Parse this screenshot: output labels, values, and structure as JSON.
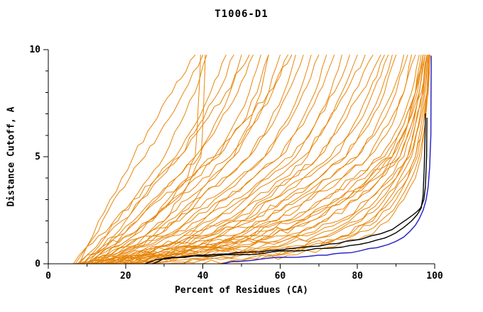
{
  "chart_data": {
    "type": "line",
    "title": "T1006-D1",
    "xlabel": "Percent of Residues (CA)",
    "ylabel": "Distance Cutoff, A",
    "xlim": [
      0,
      100
    ],
    "ylim": [
      0,
      10
    ],
    "grid": "off",
    "legend": "none",
    "colors": {
      "other_models": "#E8860B",
      "highlight_black": "#000000",
      "highlight_blue": "#2B28C8",
      "axis": "#000000",
      "background": "#FFFFFF"
    },
    "axes": {
      "x": {
        "min": 0,
        "max": 100,
        "minor_step": 10,
        "major_ticks": [
          0,
          20,
          40,
          60,
          80,
          100
        ],
        "tick_labels": [
          "0",
          "20",
          "40",
          "60",
          "80",
          "100"
        ]
      },
      "y": {
        "min": 0,
        "max": 10,
        "minor_step": 1,
        "major_ticks": [
          0,
          5,
          10
        ],
        "tick_labels": [
          "0",
          "5",
          "10"
        ]
      }
    },
    "series": [
      {
        "name": "other-models",
        "color": "#E8860B",
        "width": 1,
        "jitter": 0.16,
        "y_levels": [
          0,
          0.4,
          0.8,
          1.3,
          2,
          3,
          4,
          5,
          6.5,
          8,
          9.75
        ],
        "curves_x_at_y": [
          [
            8,
            9,
            10,
            11.5,
            13,
            16,
            19,
            22,
            27,
            32,
            38
          ],
          [
            7,
            8.5,
            10,
            12,
            14,
            17,
            21,
            25,
            30,
            35,
            40
          ],
          [
            9,
            11,
            13,
            15,
            18,
            22,
            26,
            30,
            34,
            38,
            41
          ],
          [
            10,
            12,
            14,
            17,
            20,
            24,
            28,
            33,
            38,
            42,
            46
          ],
          [
            8,
            10,
            12.5,
            15,
            19,
            24,
            29,
            34,
            39,
            44,
            48
          ],
          [
            11,
            13,
            16,
            19,
            23,
            28,
            33,
            38,
            43,
            47,
            50
          ],
          [
            9,
            12,
            15,
            18,
            22,
            27,
            33,
            39,
            44,
            49,
            53
          ],
          [
            12,
            15,
            18,
            22,
            26,
            31,
            37,
            43,
            48,
            52,
            55
          ],
          [
            10,
            13,
            17,
            21,
            26,
            32,
            38,
            44,
            50,
            54,
            57
          ],
          [
            13,
            16,
            20,
            25,
            30,
            36,
            42,
            48,
            53,
            57,
            60
          ],
          [
            8,
            11,
            15,
            20,
            26,
            33,
            40,
            47,
            53,
            58,
            62
          ],
          [
            14,
            18,
            22,
            27,
            33,
            39,
            46,
            52,
            57,
            61,
            64
          ],
          [
            10,
            14,
            19,
            25,
            31,
            38,
            45,
            52,
            58,
            62,
            66
          ],
          [
            15,
            19,
            24,
            30,
            36,
            43,
            50,
            56,
            61,
            65,
            68
          ],
          [
            11,
            15,
            21,
            27,
            34,
            41,
            49,
            56,
            62,
            66,
            70
          ],
          [
            16,
            21,
            26,
            32,
            39,
            46,
            53,
            60,
            65,
            69,
            72
          ],
          [
            12,
            17,
            23,
            30,
            37,
            45,
            53,
            60,
            66,
            70,
            74
          ],
          [
            17,
            22,
            28,
            35,
            42,
            50,
            57,
            64,
            69,
            73,
            76
          ],
          [
            13,
            18,
            25,
            32,
            40,
            48,
            56,
            63,
            69,
            74,
            78
          ],
          [
            18,
            24,
            30,
            37,
            45,
            53,
            61,
            67,
            72,
            76,
            80
          ],
          [
            14,
            20,
            27,
            35,
            43,
            51,
            59,
            66,
            72,
            77,
            82
          ],
          [
            19,
            25,
            32,
            40,
            48,
            56,
            63,
            70,
            75,
            79,
            84
          ],
          [
            15,
            21,
            29,
            37,
            46,
            55,
            63,
            70,
            76,
            81,
            86
          ],
          [
            20,
            27,
            34,
            42,
            50,
            58,
            66,
            73,
            79,
            83,
            87
          ],
          [
            16,
            23,
            31,
            40,
            49,
            58,
            66,
            74,
            80,
            84,
            88
          ],
          [
            21,
            28,
            36,
            44,
            53,
            62,
            70,
            77,
            82,
            86,
            89
          ],
          [
            17,
            24,
            33,
            42,
            52,
            61,
            70,
            77,
            83,
            87,
            90
          ],
          [
            22,
            30,
            38,
            47,
            56,
            65,
            73,
            80,
            85,
            89,
            92
          ],
          [
            18,
            26,
            35,
            45,
            55,
            64,
            73,
            80,
            86,
            90,
            93
          ],
          [
            23,
            31,
            40,
            50,
            59,
            68,
            76,
            83,
            88,
            92,
            94
          ],
          [
            19,
            28,
            38,
            48,
            58,
            67,
            76,
            83,
            89,
            92,
            95
          ],
          [
            24,
            33,
            42,
            52,
            62,
            71,
            79,
            86,
            91,
            94,
            96
          ],
          [
            20,
            30,
            40,
            51,
            61,
            71,
            80,
            87,
            92,
            95,
            97
          ],
          [
            25,
            35,
            45,
            55,
            65,
            75,
            83,
            89,
            93,
            96,
            97.5
          ],
          [
            26,
            36,
            47,
            58,
            68,
            77,
            85,
            91,
            94,
            96.5,
            98
          ],
          [
            10,
            30,
            50,
            62,
            72,
            80,
            86,
            90,
            93,
            95,
            97
          ],
          [
            12,
            35,
            55,
            67,
            76,
            83,
            88,
            92,
            94.5,
            96,
            97.5
          ],
          [
            15,
            40,
            60,
            72,
            80,
            86,
            90,
            93,
            95,
            97,
            98
          ],
          [
            8,
            25,
            45,
            58,
            68,
            77,
            84,
            89,
            93,
            95.5,
            97
          ],
          [
            20,
            45,
            62,
            73,
            81,
            87,
            91,
            94,
            96,
            97.5,
            98.5
          ],
          [
            25,
            50,
            66,
            76,
            83,
            88,
            92,
            95,
            96.5,
            98,
            98.5
          ],
          [
            30,
            52,
            67,
            77,
            84,
            89,
            93,
            95,
            97,
            98,
            98.5
          ],
          [
            6,
            20,
            38,
            52,
            64,
            74,
            82,
            88,
            92,
            95,
            97
          ],
          [
            7,
            22,
            40,
            55,
            66,
            76,
            83,
            89,
            93,
            95,
            96.5
          ],
          [
            9,
            28,
            48,
            61,
            71,
            80,
            86,
            91,
            94,
            96,
            97.5
          ],
          [
            35,
            55,
            68,
            78,
            85,
            90,
            93,
            95.5,
            97,
            98,
            98.5
          ],
          [
            40,
            58,
            70,
            79,
            86,
            91,
            94,
            96,
            97.5,
            98.3,
            98.7
          ],
          [
            45,
            62,
            74,
            82,
            88,
            92,
            95,
            96.5,
            97.5,
            98.2,
            98.8
          ],
          [
            11,
            32,
            52,
            65,
            75,
            83,
            89,
            93,
            95,
            96.8,
            98
          ],
          [
            13,
            37,
            57,
            69,
            78,
            85,
            90,
            93.5,
            95.8,
            97.2,
            98.2
          ],
          [
            10,
            13,
            17,
            22,
            27,
            32,
            36,
            38,
            38.6,
            39,
            39.4
          ],
          [
            12,
            16,
            20,
            25,
            30,
            34,
            37,
            39.5,
            40,
            40.3,
            40.6
          ],
          [
            14,
            18,
            23,
            28,
            33,
            38,
            43,
            48,
            52,
            55,
            57
          ],
          [
            6.5,
            8,
            10,
            13,
            17,
            22,
            28,
            34,
            40,
            46,
            52
          ],
          [
            7.5,
            10,
            14,
            18,
            23,
            29,
            36,
            43,
            50,
            57,
            63
          ]
        ]
      },
      {
        "name": "highlight-black-a",
        "color": "#000000",
        "width": 1.4,
        "jitter": 0.05,
        "points": [
          [
            25,
            0
          ],
          [
            28,
            0.2
          ],
          [
            33,
            0.3
          ],
          [
            40,
            0.35
          ],
          [
            48,
            0.42
          ],
          [
            56,
            0.5
          ],
          [
            64,
            0.6
          ],
          [
            72,
            0.72
          ],
          [
            78,
            0.85
          ],
          [
            83,
            1.0
          ],
          [
            87,
            1.2
          ],
          [
            90,
            1.45
          ],
          [
            92,
            1.7
          ],
          [
            94,
            2.0
          ],
          [
            95.5,
            2.3
          ],
          [
            96.5,
            2.6
          ],
          [
            97,
            3.2
          ],
          [
            97.3,
            4.5
          ],
          [
            97.5,
            6.0
          ],
          [
            97.6,
            7.0
          ]
        ]
      },
      {
        "name": "highlight-black-b",
        "color": "#000000",
        "width": 1.4,
        "jitter": 0.05,
        "points": [
          [
            27,
            0
          ],
          [
            30,
            0.25
          ],
          [
            36,
            0.35
          ],
          [
            44,
            0.45
          ],
          [
            52,
            0.55
          ],
          [
            60,
            0.65
          ],
          [
            68,
            0.8
          ],
          [
            75,
            0.95
          ],
          [
            81,
            1.15
          ],
          [
            86,
            1.4
          ],
          [
            89,
            1.6
          ],
          [
            91,
            1.85
          ],
          [
            93,
            2.1
          ],
          [
            94.5,
            2.3
          ],
          [
            95.5,
            2.45
          ],
          [
            96.3,
            2.6
          ],
          [
            96.8,
            2.8
          ],
          [
            97.2,
            3.0
          ],
          [
            97.6,
            3.6
          ],
          [
            97.9,
            5.0
          ],
          [
            98,
            6.8
          ]
        ]
      },
      {
        "name": "highlight-blue",
        "color": "#2B28C8",
        "width": 1.5,
        "jitter": 0.04,
        "points": [
          [
            45,
            0
          ],
          [
            48,
            0.12
          ],
          [
            55,
            0.22
          ],
          [
            62,
            0.3
          ],
          [
            70,
            0.4
          ],
          [
            76,
            0.5
          ],
          [
            81,
            0.62
          ],
          [
            85,
            0.75
          ],
          [
            88,
            0.9
          ],
          [
            90,
            1.05
          ],
          [
            92,
            1.25
          ],
          [
            93.5,
            1.5
          ],
          [
            95,
            1.8
          ],
          [
            96,
            2.1
          ],
          [
            97,
            2.5
          ],
          [
            97.8,
            3.0
          ],
          [
            98.3,
            3.6
          ],
          [
            98.7,
            4.5
          ],
          [
            99,
            6.0
          ],
          [
            99.1,
            9.7
          ]
        ]
      }
    ]
  }
}
